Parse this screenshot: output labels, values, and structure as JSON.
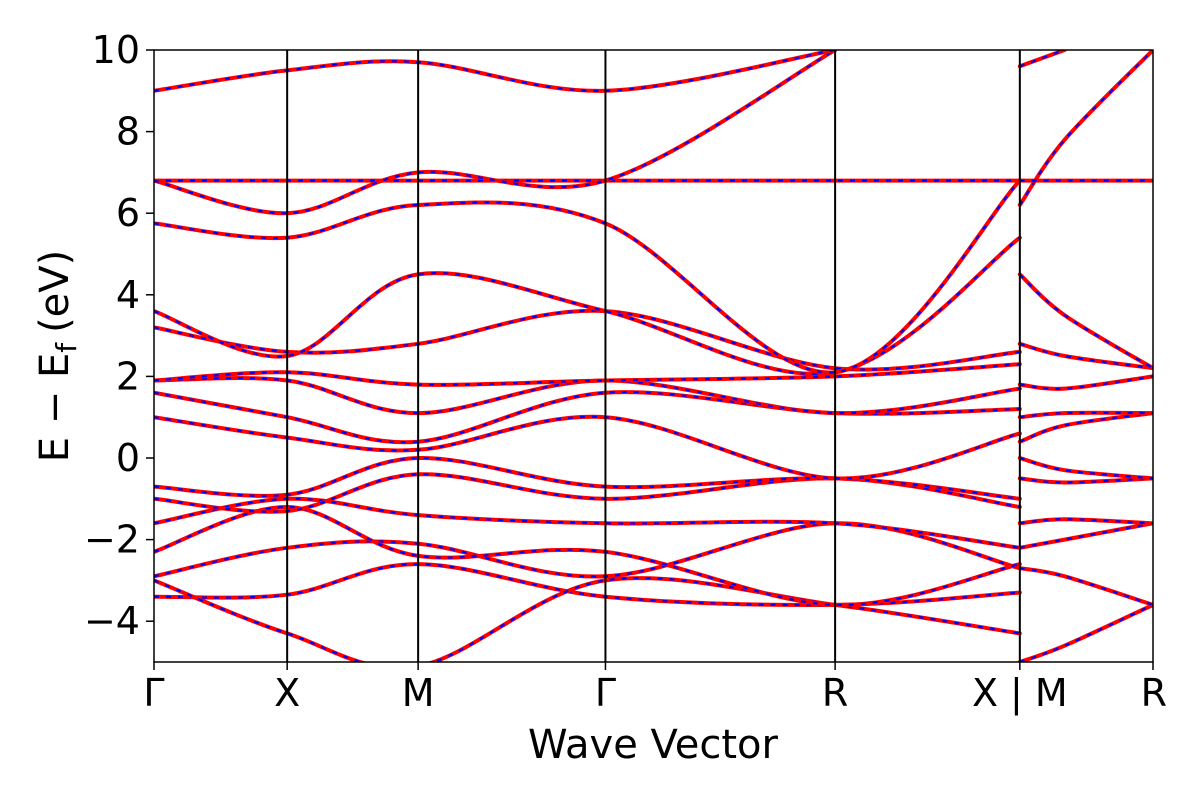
{
  "chart_data": {
    "type": "line",
    "xlabel": "Wave Vector",
    "ylabel": "E − E",
    "ylabel_subscript": "f",
    "ylabel_unit": "(eV)",
    "ylim": [
      -5,
      10
    ],
    "xlim": [
      0,
      1
    ],
    "y_ticks": [
      -4,
      -2,
      0,
      2,
      4,
      6,
      8,
      10
    ],
    "y_tick_labels": [
      "−4",
      "−2",
      "0",
      "2",
      "4",
      "6",
      "8",
      "10"
    ],
    "k_points": [
      {
        "label": "Γ",
        "x": 0.0
      },
      {
        "label": "X",
        "x": 0.1333
      },
      {
        "label": "M",
        "x": 0.2644
      },
      {
        "label": "Γ",
        "x": 0.4519
      },
      {
        "label": "R",
        "x": 0.6818
      },
      {
        "label": "X | M",
        "x": 0.8667
      },
      {
        "label": "R",
        "x": 1.0
      }
    ],
    "grid": false,
    "legend": "none",
    "colors": {
      "band_red": "#ff0000",
      "band_blue": "#0000ff"
    },
    "series": [
      {
        "values": [
          [
            0,
            -3.4
          ],
          [
            0.1333,
            -3.35
          ],
          [
            0.2644,
            -2.6
          ],
          [
            0.4519,
            -3.4
          ],
          [
            0.6818,
            -3.6
          ],
          [
            0.8667,
            -3.3
          ]
        ]
      },
      {
        "values": [
          [
            0,
            -3.0
          ],
          [
            0.1333,
            -4.3
          ],
          [
            0.2644,
            -5.1
          ],
          [
            0.4519,
            -3.0
          ],
          [
            0.6818,
            -3.6
          ],
          [
            0.8667,
            -4.3
          ]
        ]
      },
      {
        "values": [
          [
            0,
            -2.9
          ],
          [
            0.1333,
            -2.2
          ],
          [
            0.2644,
            -2.1
          ],
          [
            0.4519,
            -2.9
          ],
          [
            0.6818,
            -1.6
          ],
          [
            0.8667,
            -2.7
          ]
        ]
      },
      {
        "values": [
          [
            0,
            -2.3
          ],
          [
            0.1333,
            -1.2
          ],
          [
            0.2644,
            -2.4
          ],
          [
            0.4519,
            -2.3
          ],
          [
            0.6818,
            -3.6
          ],
          [
            0.8667,
            -2.6
          ]
        ]
      },
      {
        "values": [
          [
            0,
            -1.6
          ],
          [
            0.1333,
            -1.0
          ],
          [
            0.2644,
            -1.4
          ],
          [
            0.4519,
            -1.6
          ],
          [
            0.6818,
            -1.6
          ],
          [
            0.8667,
            -2.2
          ]
        ]
      },
      {
        "values": [
          [
            0,
            -1.0
          ],
          [
            0.1333,
            -1.3
          ],
          [
            0.2644,
            -0.4
          ],
          [
            0.4519,
            -1.0
          ],
          [
            0.6818,
            -0.5
          ],
          [
            0.8667,
            -1.2
          ]
        ]
      },
      {
        "values": [
          [
            0,
            -0.7
          ],
          [
            0.1333,
            -0.9
          ],
          [
            0.2644,
            0.0
          ],
          [
            0.4519,
            -0.7
          ],
          [
            0.6818,
            -0.5
          ],
          [
            0.8667,
            -1.0
          ]
        ]
      },
      {
        "values": [
          [
            0,
            1.0
          ],
          [
            0.1333,
            0.5
          ],
          [
            0.2644,
            0.2
          ],
          [
            0.4519,
            1.0
          ],
          [
            0.6818,
            -0.5
          ],
          [
            0.8667,
            0.6
          ]
        ]
      },
      {
        "values": [
          [
            0,
            1.6
          ],
          [
            0.1333,
            1.0
          ],
          [
            0.2644,
            0.4
          ],
          [
            0.4519,
            1.6
          ],
          [
            0.6818,
            1.1
          ],
          [
            0.8667,
            1.2
          ]
        ]
      },
      {
        "values": [
          [
            0,
            1.9
          ],
          [
            0.1333,
            1.9
          ],
          [
            0.2644,
            1.1
          ],
          [
            0.4519,
            1.9
          ],
          [
            0.6818,
            1.1
          ],
          [
            0.8667,
            1.7
          ]
        ]
      },
      {
        "values": [
          [
            0,
            1.9
          ],
          [
            0.1333,
            2.1
          ],
          [
            0.2644,
            1.8
          ],
          [
            0.4519,
            1.9
          ],
          [
            0.6818,
            2.0
          ],
          [
            0.8667,
            2.3
          ]
        ]
      },
      {
        "values": [
          [
            0,
            3.2
          ],
          [
            0.1333,
            2.6
          ],
          [
            0.2644,
            2.8
          ],
          [
            0.4519,
            3.6
          ],
          [
            0.6818,
            2.2
          ],
          [
            0.8667,
            2.6
          ]
        ]
      },
      {
        "values": [
          [
            0,
            3.6
          ],
          [
            0.1333,
            2.5
          ],
          [
            0.2644,
            4.5
          ],
          [
            0.4519,
            3.6
          ],
          [
            0.6818,
            2.1
          ],
          [
            0.8667,
            5.4
          ]
        ]
      },
      {
        "values": [
          [
            0,
            5.75
          ],
          [
            0.1333,
            5.4
          ],
          [
            0.2644,
            6.2
          ],
          [
            0.4519,
            5.75
          ],
          [
            0.6818,
            2.1
          ],
          [
            0.8667,
            6.8
          ]
        ]
      },
      {
        "values": [
          [
            0,
            6.8
          ],
          [
            0.1333,
            6.8
          ],
          [
            0.2644,
            6.8
          ],
          [
            0.4519,
            6.8
          ],
          [
            0.6818,
            6.8
          ],
          [
            0.8667,
            6.8
          ]
        ]
      },
      {
        "values": [
          [
            0,
            6.8
          ],
          [
            0.1333,
            6.0
          ],
          [
            0.2644,
            7.0
          ],
          [
            0.4519,
            6.8
          ],
          [
            0.6818,
            10.0
          ]
        ]
      },
      {
        "values": [
          [
            0,
            9.0
          ],
          [
            0.1333,
            9.5
          ],
          [
            0.2644,
            9.7
          ],
          [
            0.4519,
            9.0
          ],
          [
            0.6818,
            10.0
          ]
        ]
      },
      {
        "values": [
          [
            0.8667,
            -5.0
          ],
          [
            0.9115,
            -4.6
          ],
          [
            1.0,
            -3.6
          ]
        ]
      },
      {
        "values": [
          [
            0.8667,
            -2.7
          ],
          [
            0.9115,
            -2.9
          ],
          [
            1.0,
            -3.6
          ]
        ]
      },
      {
        "values": [
          [
            0.8667,
            -2.2
          ],
          [
            0.9115,
            -2.0
          ],
          [
            1.0,
            -1.6
          ]
        ]
      },
      {
        "values": [
          [
            0.8667,
            -1.6
          ],
          [
            0.9115,
            -1.5
          ],
          [
            1.0,
            -1.6
          ]
        ]
      },
      {
        "values": [
          [
            0.8667,
            -0.5
          ],
          [
            0.9115,
            -0.6
          ],
          [
            1.0,
            -0.5
          ]
        ]
      },
      {
        "values": [
          [
            0.8667,
            0.0
          ],
          [
            0.9115,
            -0.3
          ],
          [
            1.0,
            -0.5
          ]
        ]
      },
      {
        "values": [
          [
            0.8667,
            0.4
          ],
          [
            0.9115,
            0.8
          ],
          [
            1.0,
            1.1
          ]
        ]
      },
      {
        "values": [
          [
            0.8667,
            1.0
          ],
          [
            0.9115,
            1.1
          ],
          [
            1.0,
            1.1
          ]
        ]
      },
      {
        "values": [
          [
            0.8667,
            1.8
          ],
          [
            0.9115,
            1.7
          ],
          [
            1.0,
            2.0
          ]
        ]
      },
      {
        "values": [
          [
            0.8667,
            2.8
          ],
          [
            0.9115,
            2.5
          ],
          [
            1.0,
            2.2
          ]
        ]
      },
      {
        "values": [
          [
            0.8667,
            4.5
          ],
          [
            0.9115,
            3.5
          ],
          [
            1.0,
            2.2
          ]
        ]
      },
      {
        "values": [
          [
            0.8667,
            6.2
          ],
          [
            0.9115,
            7.8
          ],
          [
            1.0,
            10.0
          ]
        ]
      },
      {
        "values": [
          [
            0.8667,
            6.8
          ],
          [
            0.9115,
            6.8
          ],
          [
            1.0,
            6.8
          ]
        ]
      },
      {
        "values": [
          [
            0.8667,
            9.6
          ],
          [
            0.9115,
            10.0
          ]
        ]
      }
    ]
  }
}
